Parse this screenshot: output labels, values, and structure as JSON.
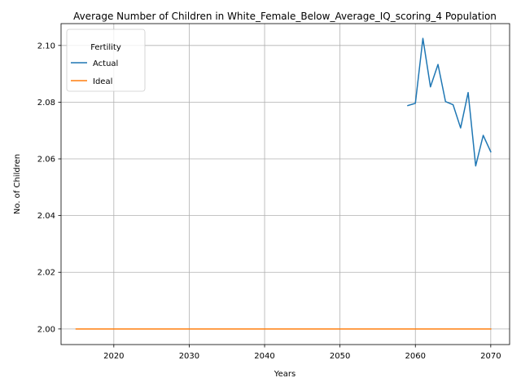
{
  "chart_data": {
    "type": "line",
    "title": "Average Number of Children in White_Female_Below_Average_IQ_scoring_4 Population",
    "xlabel": "Years",
    "ylabel": "No. of Children",
    "xlim": [
      2013,
      2072.5
    ],
    "ylim": [
      1.9945,
      2.1077
    ],
    "xticks": [
      2020,
      2030,
      2040,
      2050,
      2060,
      2070
    ],
    "yticks": [
      2.0,
      2.02,
      2.04,
      2.06,
      2.08,
      2.1
    ],
    "grid": true,
    "legend": {
      "title": "Fertility",
      "placement": "top-left"
    },
    "series": [
      {
        "name": "Actual",
        "color": "#1f77b4",
        "x": [
          2059,
          2060,
          2061,
          2062,
          2063,
          2064,
          2065,
          2066,
          2067,
          2068,
          2069,
          2070
        ],
        "y": [
          2.0788,
          2.0796,
          2.1025,
          2.0854,
          2.0933,
          2.0802,
          2.0791,
          2.0709,
          2.0834,
          2.0575,
          2.0683,
          2.0625
        ]
      },
      {
        "name": "Ideal",
        "color": "#ff7f0e",
        "x": [
          2015,
          2070
        ],
        "y": [
          2.0,
          2.0
        ]
      }
    ]
  }
}
